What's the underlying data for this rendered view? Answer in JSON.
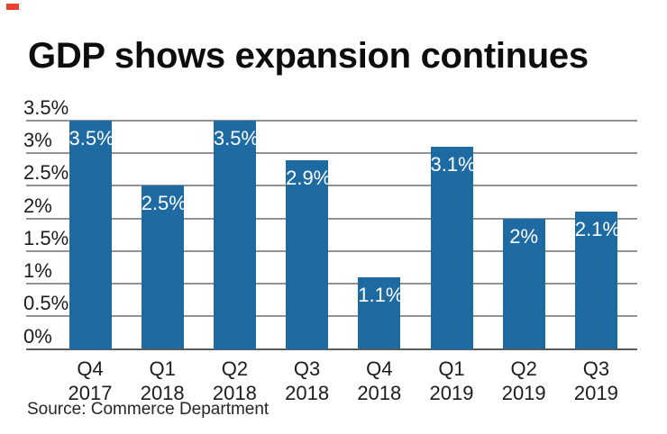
{
  "header": {
    "title": "GDP shows expansion continues"
  },
  "source_note": "Source: Commerce Department",
  "colors": {
    "bar": "#1e6ba3",
    "gridline": "#919396",
    "baseline": "#5a5b5e",
    "text": "#1c1c1e",
    "accent_mark": "#e8432f",
    "background": "#ffffff"
  },
  "chart_data": {
    "type": "bar",
    "title": "GDP shows expansion continues",
    "categories": [
      {
        "quarter": "Q4",
        "year": "2017"
      },
      {
        "quarter": "Q1",
        "year": "2018"
      },
      {
        "quarter": "Q2",
        "year": "2018"
      },
      {
        "quarter": "Q3",
        "year": "2018"
      },
      {
        "quarter": "Q4",
        "year": "2018"
      },
      {
        "quarter": "Q1",
        "year": "2019"
      },
      {
        "quarter": "Q2",
        "year": "2019"
      },
      {
        "quarter": "Q3",
        "year": "2019"
      }
    ],
    "values": [
      3.5,
      2.5,
      3.5,
      2.9,
      1.1,
      3.1,
      2,
      2.1
    ],
    "bar_labels": [
      "3.5%",
      "2.5%",
      "3.5%",
      "2.9%",
      "1.1%",
      "3.1%",
      "2%",
      "2.1%"
    ],
    "y_ticks": [
      {
        "value": 0,
        "label": "0%"
      },
      {
        "value": 0.5,
        "label": "0.5%"
      },
      {
        "value": 1,
        "label": "1%"
      },
      {
        "value": 1.5,
        "label": "1.5%"
      },
      {
        "value": 2,
        "label": "2%"
      },
      {
        "value": 2.5,
        "label": "2.5%"
      },
      {
        "value": 3,
        "label": "3%"
      },
      {
        "value": 3.5,
        "label": "3.5%"
      }
    ],
    "ylim": [
      0,
      3.5
    ],
    "xlabel": "",
    "ylabel": "",
    "grid": true,
    "legend": "none",
    "value_labels_position": "inside-top"
  }
}
